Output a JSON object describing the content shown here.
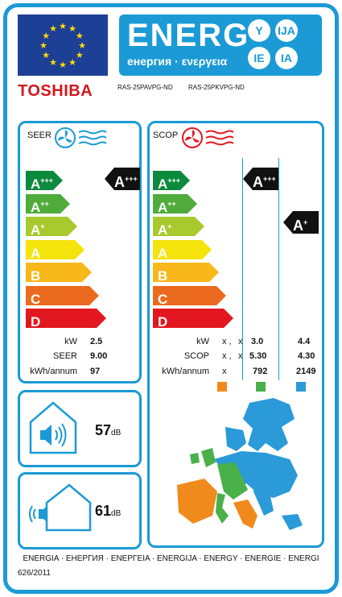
{
  "header": {
    "energ_title": "ENERG",
    "energ_subtitle": "енергия · ενεργεια",
    "lang_codes": [
      "Y",
      "IJA",
      "IE",
      "IA"
    ],
    "brand": "TOSHIBA",
    "model_indoor": "RAS-25PAVPG-ND",
    "model_outdoor": "RAS-25PKVPG-ND"
  },
  "classes": [
    {
      "letter": "A",
      "sup": "+++",
      "color": "#0b8a3d"
    },
    {
      "letter": "A",
      "sup": "++",
      "color": "#4fac3a"
    },
    {
      "letter": "A",
      "sup": "+",
      "color": "#a9c92f"
    },
    {
      "letter": "A",
      "sup": "",
      "color": "#f4e40c"
    },
    {
      "letter": "B",
      "sup": "",
      "color": "#f8b81a"
    },
    {
      "letter": "C",
      "sup": "",
      "color": "#ec6a1d"
    },
    {
      "letter": "D",
      "sup": "",
      "color": "#e3171f"
    }
  ],
  "seer": {
    "title": "SEER",
    "rating_letter": "A",
    "rating_sup": "+++",
    "rows": [
      {
        "label": "kW",
        "value": "2.5"
      },
      {
        "label": "SEER",
        "value": "9.00"
      },
      {
        "label": "kWh/annum",
        "value": "97"
      }
    ]
  },
  "scop": {
    "title": "SCOP",
    "rating_average_letter": "A",
    "rating_average_sup": "+++",
    "rating_warmer_letter": "A",
    "rating_warmer_sup": "+",
    "rows": [
      {
        "label": "kW",
        "x1": "x ,",
        "x2": "x",
        "average": "3.0",
        "warmer": "4.4"
      },
      {
        "label": "SCOP",
        "x1": "x ,",
        "x2": "x",
        "average": "5.30",
        "warmer": "4.30"
      },
      {
        "label": "kWh/annum",
        "x1": "x",
        "x2": "",
        "average": "792",
        "warmer": "2149"
      }
    ],
    "zone_colors": {
      "colder": "#f08a1c",
      "average": "#49b04a",
      "warmer": "#2a9ad8"
    }
  },
  "sound": {
    "indoor_value": "57",
    "outdoor_value": "61",
    "unit": "dB"
  },
  "footer": {
    "languages": "ENERGIA · ЕНЕРГИЯ · ΕΝΕΡΓΕΙΑ · ENERGIJA · ENERGY · ENERGIE · ENERGI",
    "regulation": "626/2011"
  }
}
